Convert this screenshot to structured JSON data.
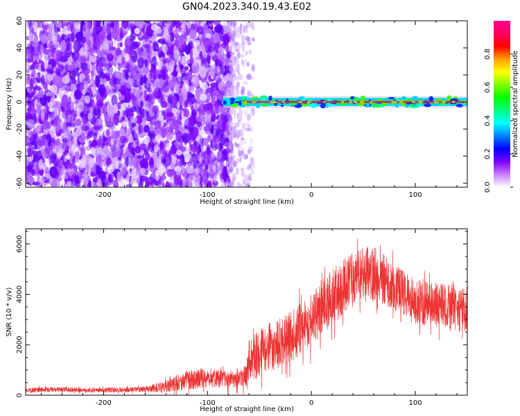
{
  "title": "GN04.2023.340.19.43.E02",
  "chart_data": [
    {
      "type": "heatmap",
      "xlabel": "Height of straight line (km)",
      "ylabel": "Frequency (Hz)",
      "xlim": [
        -275,
        150
      ],
      "ylim": [
        -63,
        60
      ],
      "x_ticks": [
        -200,
        -100,
        0,
        100
      ],
      "y_ticks": [
        -60,
        -40,
        -20,
        0,
        20,
        40,
        60
      ],
      "x_tick_labels": [
        "-200",
        "-100",
        "0",
        "100"
      ],
      "y_tick_labels": [
        "-60",
        "-40",
        "-20",
        "0",
        "20",
        "40",
        "60"
      ],
      "noise_region_x": [
        -275,
        -78
      ],
      "transition_region_x": [
        -78,
        -55
      ],
      "signal_band": {
        "x": [
          -85,
          145
        ],
        "frequency_center": 0,
        "frequency_halfwidth": 3
      },
      "colorbar": {
        "label": "Normalized spectral amplitude",
        "range": [
          0.0,
          1.0
        ],
        "ticks": [
          0.0,
          0.2,
          0.4,
          0.6,
          0.8
        ],
        "tick_labels": [
          "0.0",
          "0.2",
          "0.4",
          "0.6",
          "0.8"
        ],
        "colors": [
          "#ffffff",
          "#7a00ff",
          "#0000ff",
          "#00ffff",
          "#00ff00",
          "#ffff00",
          "#ff0000",
          "#ff0080"
        ]
      },
      "grid": false
    },
    {
      "type": "line",
      "xlabel": "Height of straight line (km)",
      "ylabel": "SNR (10 * v/v)",
      "xlim": [
        -275,
        150
      ],
      "ylim": [
        0,
        6600
      ],
      "x_ticks": [
        -200,
        -100,
        0,
        100
      ],
      "y_ticks": [
        0,
        2000,
        4000,
        6000
      ],
      "x_tick_labels": [
        "-200",
        "-100",
        "0",
        "100"
      ],
      "y_tick_labels": [
        "0",
        "2000",
        "4000",
        "6000"
      ],
      "series_color": "#ee3333",
      "envelope": {
        "x": [
          -275,
          -250,
          -200,
          -160,
          -140,
          -120,
          -100,
          -80,
          -62,
          -60,
          -40,
          -20,
          0,
          20,
          40,
          60,
          80,
          100,
          120,
          140,
          150
        ],
        "mean": [
          200,
          220,
          200,
          230,
          350,
          600,
          700,
          650,
          750,
          1400,
          1900,
          2300,
          3000,
          3900,
          4600,
          4900,
          4300,
          3700,
          3600,
          3500,
          3400
        ],
        "spread": [
          100,
          100,
          100,
          120,
          250,
          400,
          400,
          350,
          450,
          900,
          1000,
          1000,
          1100,
          1100,
          1100,
          1100,
          1000,
          900,
          900,
          900,
          900
        ]
      },
      "grid": false
    }
  ]
}
